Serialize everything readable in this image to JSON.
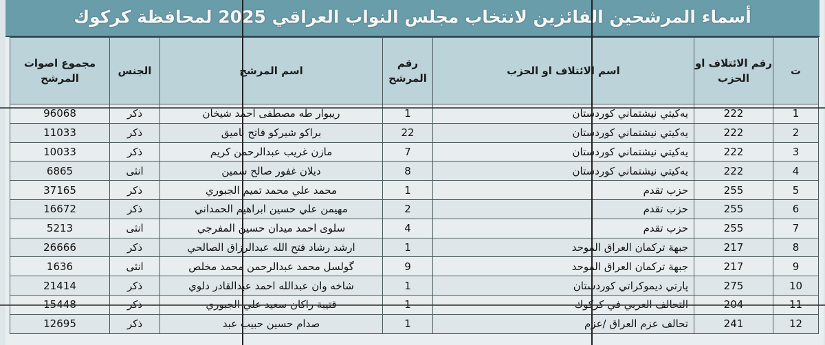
{
  "title": "أسماء المرشحين الفائزين لانتخاب مجلس النواب العراقي 2025 لمحافظة كركوك",
  "headers": {
    "seq": "ت",
    "coalition_no": "رقم الائتلاف او الحزب",
    "coalition_name": "اسم الائتلاف او الحزب",
    "candidate_no": "رقم المرشح",
    "candidate_name": "اسم المرشح",
    "gender": "الجنس",
    "votes": "مجموع اصوات المرشح"
  },
  "rows": [
    {
      "seq": "1",
      "coalition_no": "222",
      "coalition_name": "يەكيتي نيشتماني كوردستان",
      "candidate_no": "1",
      "candidate_name": "ريبوار طه مصطفى احمد شيخان",
      "gender": "ذكر",
      "votes": "96068"
    },
    {
      "seq": "2",
      "coalition_no": "222",
      "coalition_name": "يەكيتي نيشتماني كوردستان",
      "candidate_no": "22",
      "candidate_name": "براكو شيركو فاتح ناميق",
      "gender": "ذكر",
      "votes": "11033"
    },
    {
      "seq": "3",
      "coalition_no": "222",
      "coalition_name": "يەكيتي نيشتماني كوردستان",
      "candidate_no": "7",
      "candidate_name": "مازن غريب عبدالرحمن كريم",
      "gender": "ذكر",
      "votes": "10033"
    },
    {
      "seq": "4",
      "coalition_no": "222",
      "coalition_name": "يەكيتي نيشتماني كوردستان",
      "candidate_no": "8",
      "candidate_name": "ديلان غفور صالح سمين",
      "gender": "انثى",
      "votes": "6865"
    },
    {
      "seq": "5",
      "coalition_no": "255",
      "coalition_name": "حزب تقدم",
      "candidate_no": "1",
      "candidate_name": "محمد علي محمد تميم الجبوري",
      "gender": "ذكر",
      "votes": "37165"
    },
    {
      "seq": "6",
      "coalition_no": "255",
      "coalition_name": "حزب تقدم",
      "candidate_no": "2",
      "candidate_name": "مهيمن علي حسين ابراهيم الحمداني",
      "gender": "ذكر",
      "votes": "16672"
    },
    {
      "seq": "7",
      "coalition_no": "255",
      "coalition_name": "حزب تقدم",
      "candidate_no": "4",
      "candidate_name": "سلوى احمد ميدان حسين المفرجي",
      "gender": "انثى",
      "votes": "5213"
    },
    {
      "seq": "8",
      "coalition_no": "217",
      "coalition_name": "جبهة تركمان العراق الموحد",
      "candidate_no": "1",
      "candidate_name": "ارشد رشاد فتح الله عبدالرزاق الصالحي",
      "gender": "ذكر",
      "votes": "26666"
    },
    {
      "seq": "9",
      "coalition_no": "217",
      "coalition_name": "جبهة تركمان العراق الموحد",
      "candidate_no": "9",
      "candidate_name": "گولسل محمد عبدالرحمن محمد مخلص",
      "gender": "انثى",
      "votes": "1636"
    },
    {
      "seq": "10",
      "coalition_no": "275",
      "coalition_name": "پارتي ديموكراتي كوردستان",
      "candidate_no": "1",
      "candidate_name": "شاخه وان عبدالله احمد عبدالقادر دلوي",
      "gender": "ذكر",
      "votes": "21414"
    },
    {
      "seq": "11",
      "coalition_no": "204",
      "coalition_name": "التحالف العربي في كركوك",
      "candidate_no": "1",
      "candidate_name": "قتيبة راكان سعيد علي الجبوري",
      "gender": "ذكر",
      "votes": "15448"
    },
    {
      "seq": "12",
      "coalition_no": "241",
      "coalition_name": "تحالف عزم العراق /عزم",
      "candidate_no": "1",
      "candidate_name": "صدام حسين حبيب عبد",
      "gender": "ذكر",
      "votes": "12695"
    }
  ]
}
